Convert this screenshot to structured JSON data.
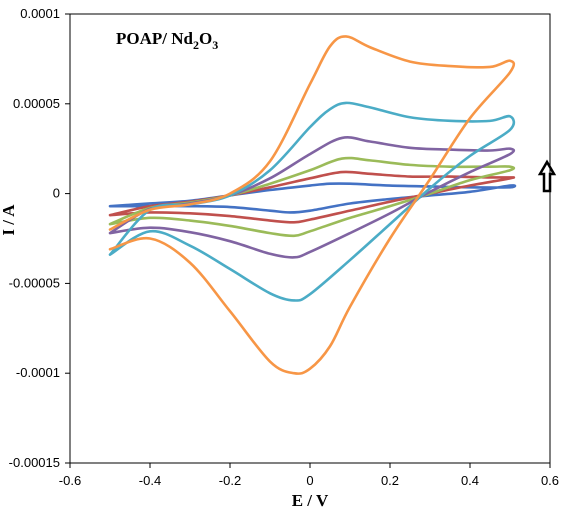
{
  "chart_data": {
    "type": "line",
    "title": "",
    "annotation": {
      "main": "POAP/  Nd",
      "sub1": "2",
      "mid": "O",
      "sub2": "3"
    },
    "xlabel": "E / V",
    "ylabel": "I / A",
    "xlim": [
      -0.6,
      0.6
    ],
    "ylim": [
      -0.00015,
      0.0001
    ],
    "x_ticks": [
      {
        "v": -0.6,
        "label": "-0.6"
      },
      {
        "v": -0.4,
        "label": "-0.4"
      },
      {
        "v": -0.2,
        "label": "-0.2"
      },
      {
        "v": 0,
        "label": "0"
      },
      {
        "v": 0.2,
        "label": "0.2"
      },
      {
        "v": 0.4,
        "label": "0.4"
      },
      {
        "v": 0.6,
        "label": "0.6"
      }
    ],
    "y_ticks": [
      {
        "v": 0.0001,
        "label": "0.0001"
      },
      {
        "v": 5e-05,
        "label": "0.00005"
      },
      {
        "v": 0,
        "label": "0"
      },
      {
        "v": -5e-05,
        "label": "-0.00005"
      },
      {
        "v": -0.0001,
        "label": "-0.0001"
      },
      {
        "v": -0.00015,
        "label": "-0.00015"
      }
    ],
    "grid": false,
    "legend": "none",
    "arrow": {
      "direction": "up",
      "meaning": "increasing scan rate"
    },
    "series": [
      {
        "color": "#4472c4",
        "points": [
          [
            -0.5,
            -7e-06
          ],
          [
            -0.4,
            -5.5e-06
          ],
          [
            -0.3,
            -4e-06
          ],
          [
            -0.2,
            -1e-06
          ],
          [
            -0.1,
            2e-06
          ],
          [
            0,
            4.5e-06
          ],
          [
            0.05,
            5.5e-06
          ],
          [
            0.1,
            5.5e-06
          ],
          [
            0.2,
            4.5e-06
          ],
          [
            0.3,
            4e-06
          ],
          [
            0.4,
            3.5e-06
          ],
          [
            0.5,
            3.5e-06
          ],
          [
            0.5,
            4.5e-06
          ],
          [
            0.4,
            1e-06
          ],
          [
            0.3,
            -1e-06
          ],
          [
            0.2,
            -3e-06
          ],
          [
            0.1,
            -5.5e-06
          ],
          [
            0,
            -9.5e-06
          ],
          [
            -0.05,
            -1.05e-05
          ],
          [
            -0.1,
            -9.5e-06
          ],
          [
            -0.2,
            -7.5e-06
          ],
          [
            -0.3,
            -7e-06
          ],
          [
            -0.4,
            -7e-06
          ],
          [
            -0.5,
            -7e-06
          ]
        ]
      },
      {
        "color": "#c0504d",
        "points": [
          [
            -0.5,
            -1.2e-05
          ],
          [
            -0.4,
            -7e-06
          ],
          [
            -0.3,
            -4.5e-06
          ],
          [
            -0.2,
            -1e-06
          ],
          [
            -0.1,
            3.5e-06
          ],
          [
            0,
            8.5e-06
          ],
          [
            0.08,
            1.2e-05
          ],
          [
            0.15,
            1.1e-05
          ],
          [
            0.25,
            9.5e-06
          ],
          [
            0.35,
            9.5e-06
          ],
          [
            0.45,
            9e-06
          ],
          [
            0.5,
            9e-06
          ],
          [
            0.5,
            8.5e-06
          ],
          [
            0.4,
            4.5e-06
          ],
          [
            0.3,
            0
          ],
          [
            0.2,
            -4.5e-06
          ],
          [
            0.1,
            -9.5e-06
          ],
          [
            0,
            -1.45e-05
          ],
          [
            -0.04,
            -1.6e-05
          ],
          [
            -0.1,
            -1.5e-05
          ],
          [
            -0.2,
            -1.25e-05
          ],
          [
            -0.3,
            -1.1e-05
          ],
          [
            -0.4,
            -1.05e-05
          ],
          [
            -0.5,
            -1.2e-05
          ]
        ]
      },
      {
        "color": "#9bbb59",
        "points": [
          [
            -0.5,
            -1.7e-05
          ],
          [
            -0.4,
            -8e-06
          ],
          [
            -0.3,
            -5e-06
          ],
          [
            -0.2,
            -1e-06
          ],
          [
            -0.1,
            5.5e-06
          ],
          [
            0,
            1.3e-05
          ],
          [
            0.08,
            1.95e-05
          ],
          [
            0.15,
            1.85e-05
          ],
          [
            0.25,
            1.6e-05
          ],
          [
            0.35,
            1.5e-05
          ],
          [
            0.45,
            1.5e-05
          ],
          [
            0.5,
            1.5e-05
          ],
          [
            0.5,
            1.3e-05
          ],
          [
            0.4,
            7.5e-06
          ],
          [
            0.3,
            0
          ],
          [
            0.2,
            -7e-06
          ],
          [
            0.1,
            -1.35e-05
          ],
          [
            0,
            -2.1e-05
          ],
          [
            -0.04,
            -2.35e-05
          ],
          [
            -0.1,
            -2.2e-05
          ],
          [
            -0.2,
            -1.8e-05
          ],
          [
            -0.3,
            -1.5e-05
          ],
          [
            -0.4,
            -1.35e-05
          ],
          [
            -0.5,
            -1.7e-05
          ]
        ]
      },
      {
        "color": "#8064a2",
        "points": [
          [
            -0.5,
            -2.2e-05
          ],
          [
            -0.4,
            -8.5e-06
          ],
          [
            -0.3,
            -5.5e-06
          ],
          [
            -0.2,
            -1e-06
          ],
          [
            -0.1,
            8.5e-06
          ],
          [
            0,
            2.2e-05
          ],
          [
            0.08,
            3.1e-05
          ],
          [
            0.15,
            2.9e-05
          ],
          [
            0.25,
            2.55e-05
          ],
          [
            0.35,
            2.45e-05
          ],
          [
            0.45,
            2.4e-05
          ],
          [
            0.5,
            2.5e-05
          ],
          [
            0.5,
            2.2e-05
          ],
          [
            0.4,
            1.2e-05
          ],
          [
            0.3,
            1e-06
          ],
          [
            0.2,
            -1.1e-05
          ],
          [
            0.1,
            -2.2e-05
          ],
          [
            0,
            -3.25e-05
          ],
          [
            -0.04,
            -3.55e-05
          ],
          [
            -0.1,
            -3.35e-05
          ],
          [
            -0.2,
            -2.65e-05
          ],
          [
            -0.3,
            -2.15e-05
          ],
          [
            -0.4,
            -1.9e-05
          ],
          [
            -0.5,
            -2.2e-05
          ]
        ]
      },
      {
        "color": "#4bacc6",
        "points": [
          [
            -0.5,
            -3.4e-05
          ],
          [
            -0.4,
            -9e-06
          ],
          [
            -0.3,
            -6e-06
          ],
          [
            -0.2,
            -1e-06
          ],
          [
            -0.1,
            1.3e-05
          ],
          [
            0,
            3.7e-05
          ],
          [
            0.05,
            4.7e-05
          ],
          [
            0.09,
            5.05e-05
          ],
          [
            0.15,
            4.8e-05
          ],
          [
            0.25,
            4.25e-05
          ],
          [
            0.35,
            4.05e-05
          ],
          [
            0.45,
            4.05e-05
          ],
          [
            0.5,
            4.3e-05
          ],
          [
            0.5,
            3.55e-05
          ],
          [
            0.4,
            2.1e-05
          ],
          [
            0.3,
            3e-06
          ],
          [
            0.2,
            -1.7e-05
          ],
          [
            0.1,
            -3.7e-05
          ],
          [
            0,
            -5.6e-05
          ],
          [
            -0.04,
            -5.95e-05
          ],
          [
            -0.1,
            -5.55e-05
          ],
          [
            -0.2,
            -4.2e-05
          ],
          [
            -0.3,
            -2.9e-05
          ],
          [
            -0.4,
            -2.1e-05
          ],
          [
            -0.5,
            -3.4e-05
          ]
        ]
      },
      {
        "color": "#f79646",
        "points": [
          [
            -0.5,
            -2e-05
          ],
          [
            -0.4,
            -9e-06
          ],
          [
            -0.3,
            -6e-06
          ],
          [
            -0.2,
            0
          ],
          [
            -0.1,
            1.8e-05
          ],
          [
            0,
            6.1e-05
          ],
          [
            0.05,
            8.2e-05
          ],
          [
            0.09,
            8.75e-05
          ],
          [
            0.15,
            8.15e-05
          ],
          [
            0.25,
            7.35e-05
          ],
          [
            0.35,
            7.1e-05
          ],
          [
            0.45,
            7.05e-05
          ],
          [
            0.5,
            7.4e-05
          ],
          [
            0.5,
            6.75e-05
          ],
          [
            0.4,
            4.2e-05
          ],
          [
            0.3,
            8e-06
          ],
          [
            0.2,
            -2.5e-05
          ],
          [
            0.1,
            -6.3e-05
          ],
          [
            0.05,
            -8.5e-05
          ],
          [
            0,
            -9.75e-05
          ],
          [
            -0.04,
            -0.0001
          ],
          [
            -0.1,
            -9.35e-05
          ],
          [
            -0.2,
            -6.55e-05
          ],
          [
            -0.3,
            -3.85e-05
          ],
          [
            -0.4,
            -2.5e-05
          ],
          [
            -0.5,
            -3.1e-05
          ]
        ]
      }
    ]
  }
}
